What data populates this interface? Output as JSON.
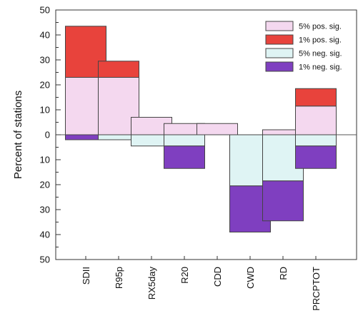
{
  "chart_data": {
    "type": "bar",
    "title": "",
    "xlabel": "",
    "ylabel": "Percent of stations",
    "ylim": [
      -50,
      50
    ],
    "yticks": [
      50,
      40,
      30,
      20,
      10,
      0,
      -10,
      -20,
      -30,
      -40,
      -50
    ],
    "ytick_labels": [
      "50",
      "40",
      "30",
      "20",
      "10",
      "0",
      "10",
      "20",
      "30",
      "40",
      "50"
    ],
    "categories": [
      "SDII",
      "R95p",
      "RX5day",
      "R20",
      "CDD",
      "CWD",
      "RD",
      "PRCPTOT"
    ],
    "stacking": "positive series stack upward from 0; negative series stack downward from 0",
    "series": [
      {
        "name": "5% pos. sig.",
        "color": "#f4d8ef",
        "values": [
          23,
          23,
          7,
          4.5,
          4.5,
          0,
          2,
          11.5
        ]
      },
      {
        "name": "1% pos. sig.",
        "color": "#e8433c",
        "values": [
          20.5,
          6.5,
          0,
          0,
          0,
          0,
          0,
          7
        ]
      },
      {
        "name": "5% neg. sig.",
        "color": "#dff4f4",
        "values": [
          0,
          -2,
          -4.5,
          -4.5,
          0,
          -20.5,
          -18.5,
          -4.5
        ]
      },
      {
        "name": "1% neg. sig.",
        "color": "#7f3fc0",
        "values": [
          -2,
          0,
          0,
          -9,
          0,
          -18.5,
          -16,
          -9
        ]
      }
    ],
    "grid": false,
    "legend_position": "top-right"
  }
}
